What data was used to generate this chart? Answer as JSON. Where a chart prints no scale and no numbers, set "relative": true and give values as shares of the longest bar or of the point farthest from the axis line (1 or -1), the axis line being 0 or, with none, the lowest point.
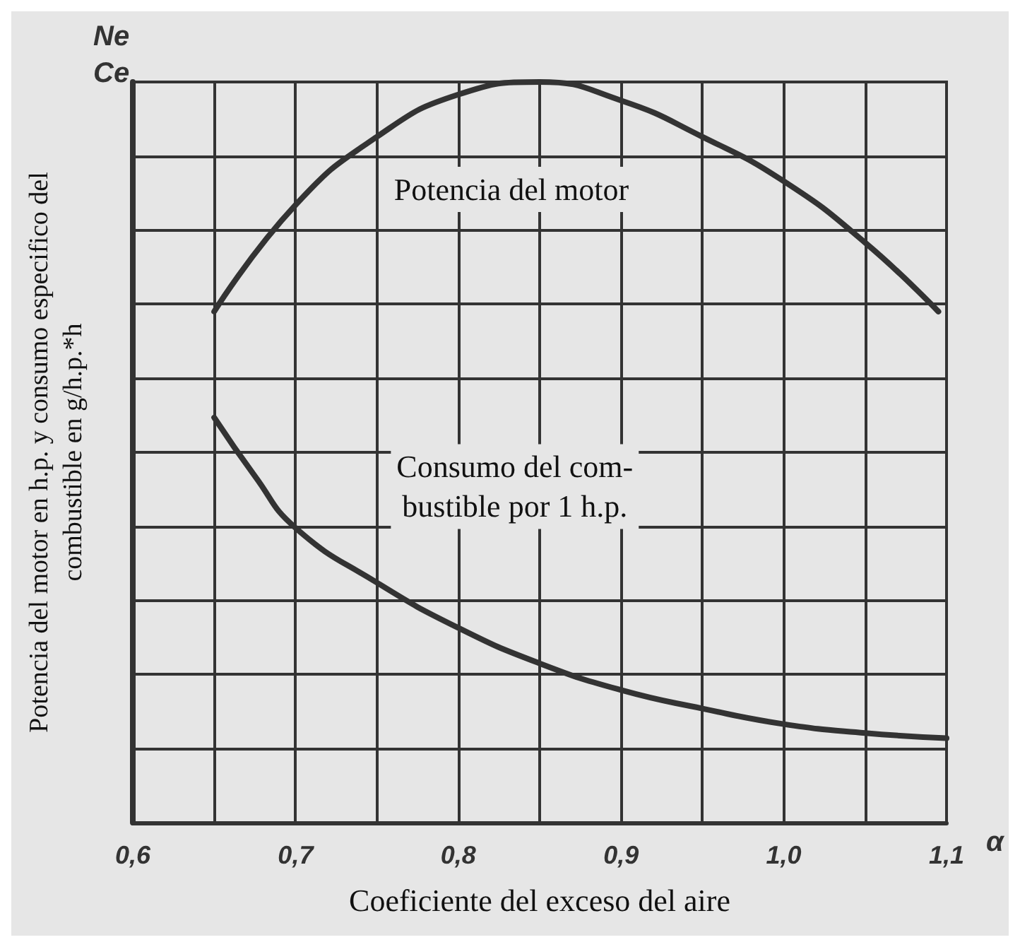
{
  "chart_data": {
    "type": "line",
    "relative": true,
    "xlabel": "Coeficiente del exceso del aire",
    "ylabel": "Potencia del motor en h.p. y consumo especifico del\ncombustible en g/h.p.*h",
    "annotations": [
      "Ne",
      "Ce",
      "α"
    ],
    "xlim": [
      0.6,
      1.1
    ],
    "xticks": [
      {
        "value": 0.6,
        "label": "0,6"
      },
      {
        "value": 0.65,
        "label": null
      },
      {
        "value": 0.7,
        "label": "0,7"
      },
      {
        "value": 0.75,
        "label": null
      },
      {
        "value": 0.8,
        "label": "0,8"
      },
      {
        "value": 0.85,
        "label": null
      },
      {
        "value": 0.9,
        "label": "0,9"
      },
      {
        "value": 0.95,
        "label": null
      },
      {
        "value": 1.0,
        "label": "1,0"
      },
      {
        "value": 1.05,
        "label": null
      },
      {
        "value": 1.1,
        "label": "1,1"
      }
    ],
    "grid": true,
    "legend": false,
    "marker": "none",
    "line_style": "solid",
    "series": [
      {
        "name": "Potencia del motor",
        "color": "#333333",
        "x": [
          0.65,
          0.7,
          0.75,
          0.8,
          0.85,
          0.9,
          0.95,
          1.0,
          1.05,
          1.095
        ],
        "values": [
          0.69,
          0.834,
          0.926,
          0.983,
          1.0,
          0.975,
          0.926,
          0.866,
          0.783,
          0.69
        ]
      },
      {
        "name": "Consumo del com-\nbustible por 1 h.p.",
        "color": "#333333",
        "x": [
          0.65,
          0.675,
          0.7,
          0.75,
          0.8,
          0.85,
          0.9,
          0.95,
          1.0,
          1.05,
          1.1
        ],
        "values": [
          0.547,
          0.468,
          0.398,
          0.324,
          0.263,
          0.215,
          0.179,
          0.154,
          0.133,
          0.121,
          0.114
        ]
      }
    ]
  }
}
